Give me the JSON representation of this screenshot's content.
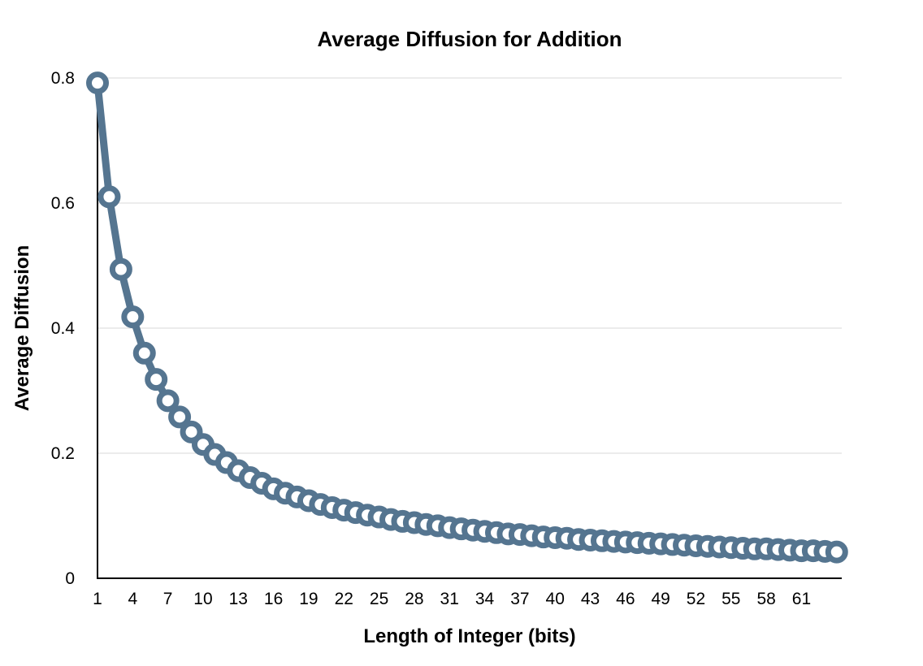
{
  "chart_data": {
    "type": "line",
    "title": "Average Diffusion for Addition",
    "xlabel": "Length of Integer (bits)",
    "ylabel": "Average Diffusion",
    "ylim": [
      0,
      0.8
    ],
    "yticks": [
      "0",
      "0.2",
      "0.4",
      "0.6",
      "0.8"
    ],
    "grid": true,
    "legend": "none",
    "colors": {
      "line": "#557590",
      "marker_fill": "#ffffff"
    },
    "x_tick_labels": [
      "1",
      "4",
      "7",
      "10",
      "13",
      "16",
      "19",
      "22",
      "25",
      "28",
      "31",
      "34",
      "37",
      "40",
      "43",
      "46",
      "49",
      "52",
      "55",
      "58",
      "61"
    ],
    "x": [
      1,
      2,
      3,
      4,
      5,
      6,
      7,
      8,
      9,
      10,
      11,
      12,
      13,
      14,
      15,
      16,
      17,
      18,
      19,
      20,
      21,
      22,
      23,
      24,
      25,
      26,
      27,
      28,
      29,
      30,
      31,
      32,
      33,
      34,
      35,
      36,
      37,
      38,
      39,
      40,
      41,
      42,
      43,
      44,
      45,
      46,
      47,
      48,
      49,
      50,
      51,
      52,
      53,
      54,
      55,
      56,
      57,
      58,
      59,
      60,
      61,
      62,
      63,
      64
    ],
    "series": [
      {
        "values": [
          0.792,
          0.61,
          0.494,
          0.418,
          0.36,
          0.318,
          0.284,
          0.258,
          0.234,
          0.214,
          0.198,
          0.185,
          0.172,
          0.161,
          0.152,
          0.143,
          0.136,
          0.13,
          0.124,
          0.118,
          0.113,
          0.109,
          0.105,
          0.101,
          0.098,
          0.094,
          0.091,
          0.089,
          0.086,
          0.084,
          0.081,
          0.079,
          0.077,
          0.075,
          0.073,
          0.071,
          0.07,
          0.068,
          0.066,
          0.065,
          0.064,
          0.062,
          0.061,
          0.06,
          0.059,
          0.058,
          0.057,
          0.056,
          0.055,
          0.054,
          0.053,
          0.052,
          0.051,
          0.05,
          0.049,
          0.048,
          0.047,
          0.047,
          0.046,
          0.045,
          0.044,
          0.044,
          0.043,
          0.042
        ]
      }
    ]
  }
}
